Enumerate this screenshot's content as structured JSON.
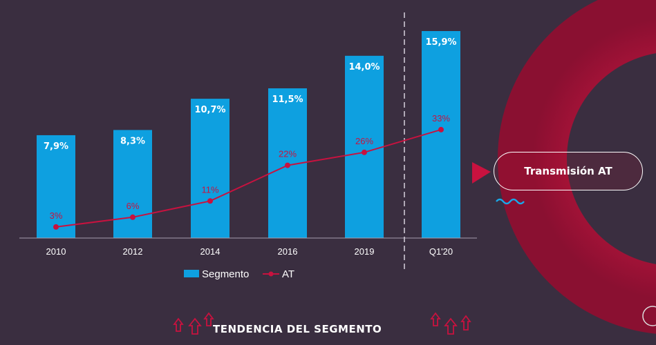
{
  "chart_data": {
    "type": "bar",
    "categories": [
      "2010",
      "2012",
      "2014",
      "2016",
      "2019",
      "Q1'20"
    ],
    "series": [
      {
        "name": "Segmento",
        "type": "bar",
        "values": [
          7.9,
          8.3,
          10.7,
          11.5,
          14.0,
          15.9
        ],
        "labels": [
          "7,9%",
          "8,3%",
          "10,7%",
          "11,5%",
          "14,0%",
          "15,9%"
        ],
        "color": "#0ea0e0"
      },
      {
        "name": "AT",
        "type": "line",
        "values": [
          3,
          6,
          11,
          22,
          26,
          33
        ],
        "labels": [
          "3%",
          "6%",
          "11%",
          "22%",
          "26%",
          "33%"
        ],
        "color": "#c8123f"
      }
    ],
    "legend_position": "bottom",
    "grid": false
  },
  "callout": {
    "label": "Transmisión AT"
  },
  "footer": {
    "title": "TENDENCIA DEL SEGMENTO"
  },
  "colors": {
    "background": "#3a2e40",
    "accent_red": "#c8123f",
    "bar_blue": "#0ea0e0",
    "wave_blue": "#1aa8e8"
  }
}
